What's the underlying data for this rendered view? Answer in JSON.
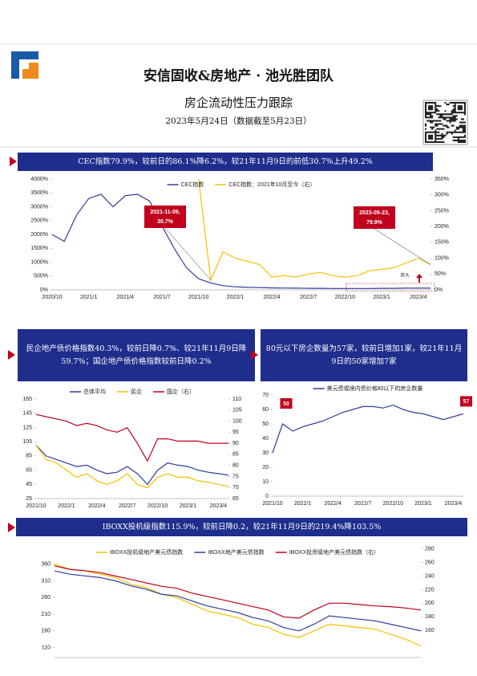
{
  "header": {
    "title": "安信固收&房地产 · 池光胜团队",
    "subtitle": "房企流动性压力跟踪",
    "date": "2023年5月24日（数据截至5月23日）"
  },
  "banners": [
    "CEC指数79.9%，较前日的86.1%降6.2%，较21年11月9日的前低30.7%上升49.2%",
    "民企地产债价格指数40.3%，较前日降0.7%、较21年11月9日降59.7%；国企地产债价格指数较前日降0.2%",
    "80元以下房企数量为57家，较前日增加1家，较21年11月9日的50家增加7家",
    "IBOXX投机级指数115.9%，较前日降0.2，较21年11月9日的219.4%降103.5%"
  ],
  "chart_data": [
    {
      "type": "line",
      "categories": [
        "2020/10",
        null,
        null,
        "2021/1",
        null,
        null,
        "2021/4",
        null,
        null,
        "2021/7",
        null,
        null,
        "2021/10",
        null,
        null,
        "2022/1",
        null,
        null,
        "2022/4",
        null,
        null,
        "2022/7",
        null,
        null,
        "2022/10",
        null,
        null,
        "2023/1",
        null,
        null,
        "2023/4",
        null
      ],
      "series": [
        {
          "name": "CEC指数",
          "color": "#2e3d9c",
          "values": [
            2000,
            1750,
            2700,
            3300,
            3450,
            3000,
            3400,
            3450,
            3200,
            2300,
            1500,
            800,
            400,
            250,
            150,
            110,
            90,
            80,
            70,
            65,
            60,
            55,
            55,
            50,
            50,
            50,
            50,
            55,
            55,
            60,
            60,
            60
          ]
        },
        {
          "name": "CEC指数：2021年10月至今（右）",
          "color": "#f5c000",
          "axis": "y2",
          "values": [
            null,
            null,
            null,
            null,
            null,
            null,
            null,
            null,
            null,
            null,
            null,
            null,
            350,
            30.7,
            120,
            100,
            90,
            80,
            40,
            45,
            40,
            50,
            55,
            45,
            40,
            45,
            60,
            65,
            70,
            85,
            100,
            79.9
          ]
        }
      ],
      "ylim": [
        0,
        4000
      ],
      "yticks": [
        {
          "value": 0,
          "label": "0%"
        },
        {
          "value": 500,
          "label": "500%"
        },
        {
          "value": 1000,
          "label": "1000%"
        },
        {
          "value": 1500,
          "label": "1500%"
        },
        {
          "value": 2000,
          "label": "2000%"
        },
        {
          "value": 2500,
          "label": "2500%"
        },
        {
          "value": 3000,
          "label": "3000%"
        },
        {
          "value": 3500,
          "label": "3500%"
        },
        {
          "value": 4000,
          "label": "4000%"
        }
      ],
      "y2lim": [
        0,
        350
      ],
      "y2ticks": [
        {
          "value": 0,
          "label": "0%"
        },
        {
          "value": 50,
          "label": "50%"
        },
        {
          "value": 100,
          "label": "100%"
        },
        {
          "value": 150,
          "label": "150%"
        },
        {
          "value": 200,
          "label": "200%"
        },
        {
          "value": 250,
          "label": "250%"
        },
        {
          "value": 300,
          "label": "300%"
        },
        {
          "value": 350,
          "label": "350%"
        }
      ],
      "annotations": [
        {
          "text": [
            "2021-11-09,",
            "30.7%"
          ]
        },
        {
          "text": [
            "2023-05-23,",
            "79.9%"
          ]
        }
      ],
      "note": "放大"
    },
    {
      "type": "line",
      "categories": [
        "2021/10",
        null,
        null,
        "2022/1",
        null,
        null,
        "2022/4",
        null,
        null,
        "2022/7",
        null,
        null,
        "2022/10",
        null,
        null,
        "2023/1",
        null,
        null,
        "2023/4",
        null
      ],
      "series": [
        {
          "name": "总体平均",
          "color": "#2e3d9c",
          "values": [
            100,
            85,
            80,
            75,
            70,
            72,
            65,
            60,
            62,
            70,
            60,
            45,
            65,
            75,
            72,
            70,
            65,
            62,
            60,
            58
          ]
        },
        {
          "name": "民企",
          "color": "#f5c000",
          "values": [
            100,
            80,
            75,
            65,
            55,
            60,
            50,
            45,
            50,
            60,
            45,
            40,
            55,
            60,
            55,
            55,
            50,
            48,
            45,
            42
          ]
        },
        {
          "name": "国企（右）",
          "color": "#c0001c",
          "axis": "y2",
          "values": [
            103,
            102,
            101,
            100,
            98,
            99,
            98,
            96,
            95,
            97,
            90,
            82,
            92,
            92,
            91,
            91,
            91,
            90,
            90,
            90
          ]
        }
      ],
      "ylim": [
        25,
        165
      ],
      "yticks": [
        25,
        45,
        65,
        85,
        105,
        125,
        145,
        165
      ],
      "y2lim": [
        65,
        110
      ],
      "y2ticks": [
        65,
        70,
        75,
        80,
        85,
        90,
        95,
        100,
        105,
        110
      ]
    },
    {
      "type": "line",
      "categories": [
        "2021/10",
        null,
        null,
        "2022/1",
        null,
        null,
        "2022/4",
        null,
        null,
        "2022/7",
        null,
        null,
        "2022/10",
        null,
        null,
        "2023/1",
        null,
        null,
        "2023/4",
        null
      ],
      "series": [
        {
          "name": "美元债或境内债价格80以下的房企数量",
          "color": "#2e3d9c",
          "values": [
            30,
            50,
            45,
            48,
            50,
            52,
            55,
            58,
            60,
            62,
            62,
            61,
            63,
            60,
            58,
            57,
            55,
            53,
            55,
            57
          ]
        }
      ],
      "ylim": [
        0,
        70
      ],
      "yticks": [
        0,
        10,
        20,
        30,
        40,
        50,
        60,
        70
      ],
      "labeled": [
        1,
        19
      ]
    },
    {
      "type": "line",
      "series": [
        {
          "name": "IBOXX投机级地产美元债指数",
          "color": "#f5c000",
          "values": [
            360,
            345,
            340,
            330,
            320,
            300,
            290,
            270,
            260,
            240,
            220,
            210,
            200,
            180,
            170,
            150,
            140,
            160,
            180,
            175,
            170,
            165,
            150,
            135,
            115
          ]
        },
        {
          "name": "IBOXX地产美元债指数",
          "color": "#2e3d9c",
          "values": [
            340,
            330,
            325,
            320,
            310,
            295,
            285,
            270,
            265,
            250,
            235,
            225,
            215,
            200,
            190,
            170,
            160,
            180,
            205,
            200,
            195,
            190,
            180,
            170,
            160
          ]
        },
        {
          "name": "IBOXX投资级地产美元债指数（右）",
          "color": "#c0001c",
          "axis": "y2",
          "values": [
            255,
            250,
            248,
            245,
            240,
            235,
            230,
            225,
            222,
            215,
            210,
            205,
            200,
            195,
            190,
            180,
            178,
            190,
            200,
            200,
            198,
            196,
            195,
            193,
            190
          ]
        }
      ],
      "ylim": [
        80,
        410
      ],
      "yticks": [
        110,
        160,
        210,
        260,
        310,
        360
      ],
      "y2lim": [
        120,
        282
      ],
      "y2ticks": [
        160,
        180,
        200,
        220,
        240,
        260,
        280
      ]
    }
  ]
}
